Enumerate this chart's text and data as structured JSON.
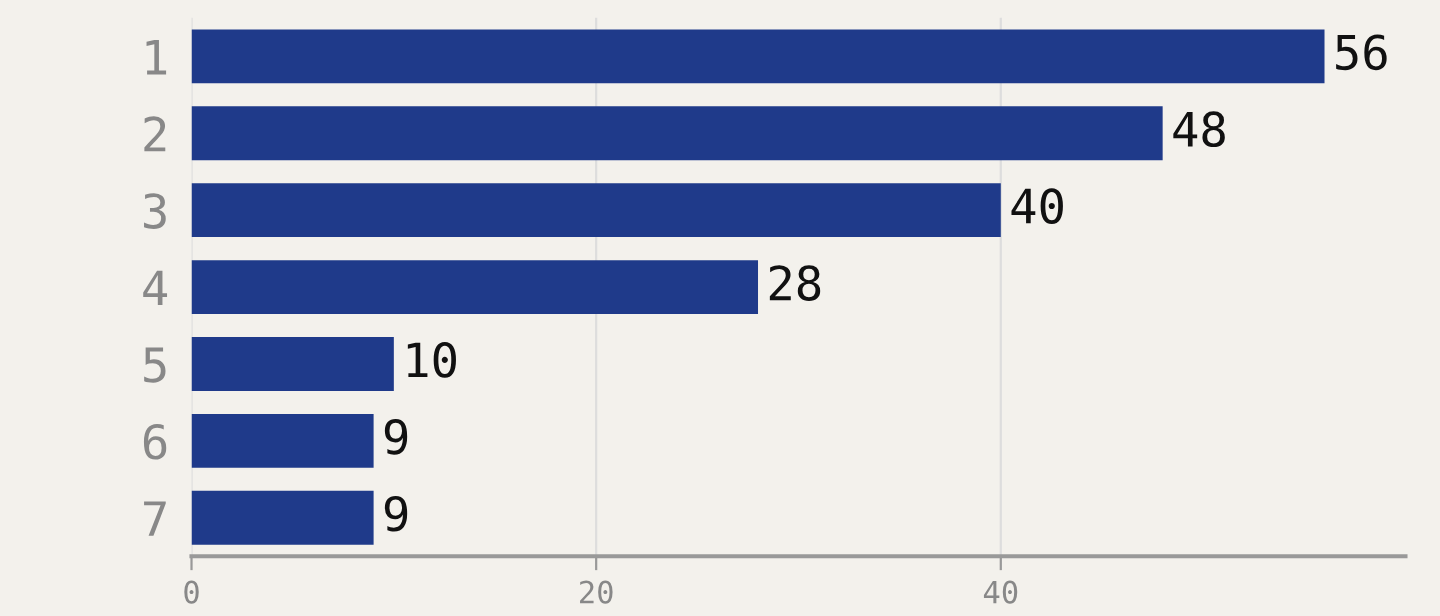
{
  "chart_data": {
    "type": "bar",
    "orientation": "horizontal",
    "categories": [
      "1",
      "2",
      "3",
      "4",
      "5",
      "6",
      "7"
    ],
    "values": [
      56,
      48,
      40,
      28,
      10,
      9,
      9
    ],
    "color": "#1f3a8a",
    "xlim": [
      0,
      60
    ],
    "xticks": [
      0,
      20,
      40
    ],
    "grid": "x",
    "data_labels": true
  }
}
